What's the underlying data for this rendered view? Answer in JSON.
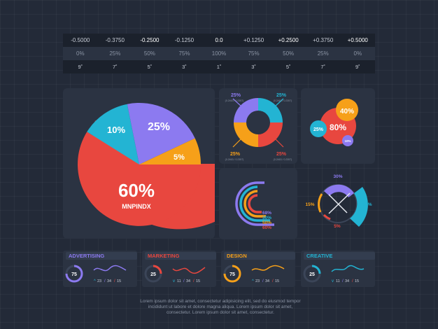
{
  "table": {
    "rows": [
      [
        "-0.5000",
        "-0.3750",
        "-0.2500",
        "-0.1250",
        "0.0",
        "+0.1250",
        "+0.2500",
        "+0.3750",
        "+0.5000"
      ],
      [
        "0%",
        "25%",
        "50%",
        "75%",
        "100%",
        "75%",
        "50%",
        "25%",
        "0%"
      ],
      [
        "9˚",
        "7˚",
        "5˚",
        "3˚",
        "1˚",
        "3˚",
        "5˚",
        "7˚",
        "9˚"
      ]
    ]
  },
  "colors": {
    "red": "#e8473f",
    "blue": "#23b4d3",
    "purple": "#8c7af0",
    "orange": "#f6a019",
    "bg": "#232a38",
    "panel": "#2b3342"
  },
  "pie": {
    "labels": [
      "10%",
      "25%",
      "5%",
      "60%"
    ],
    "name": "MNPINDX"
  },
  "donut": {
    "labels": [
      "25%",
      "25%",
      "25%",
      "25%"
    ],
    "sublabels": [
      "(0.2463 / 0.2357)",
      "(0.2463 / 0.2357)",
      "(0.2463 / 0.2357)",
      "(0.2463 / 0.2357)"
    ]
  },
  "bubbles": {
    "labels": [
      "80%",
      "40%",
      "25%",
      "10%"
    ]
  },
  "arcs": {
    "labels": [
      "68%",
      "30%",
      "50%",
      "60%"
    ]
  },
  "radial": {
    "labels": [
      "30%",
      "15%",
      "50%",
      "5%"
    ]
  },
  "cards": [
    {
      "title": "ADVERTISING",
      "gauge": "75",
      "s1": "23",
      "s2": "34",
      "s3": "15",
      "color": "#8c7af0"
    },
    {
      "title": "MARKETING",
      "gauge": "25",
      "s1": "11",
      "s2": "34",
      "s3": "15",
      "color": "#e8473f"
    },
    {
      "title": "DESIGN",
      "gauge": "75",
      "s1": "23",
      "s2": "34",
      "s3": "15",
      "color": "#f6a019"
    },
    {
      "title": "CREATIVE",
      "gauge": "25",
      "s1": "11",
      "s2": "34",
      "s3": "15",
      "color": "#23b4d3"
    }
  ],
  "footer": {
    "line1": "Lorem ipsum dolor sit amet, consectetur adipisicing elit, sed do eiusmod tempor",
    "line2": "incididunt ut labore et dolore magna aliqua. Lorem ipsum dolor sit amet,",
    "line3": "consectetur. Lorem ipsum dolor sit amet, consectetur."
  }
}
